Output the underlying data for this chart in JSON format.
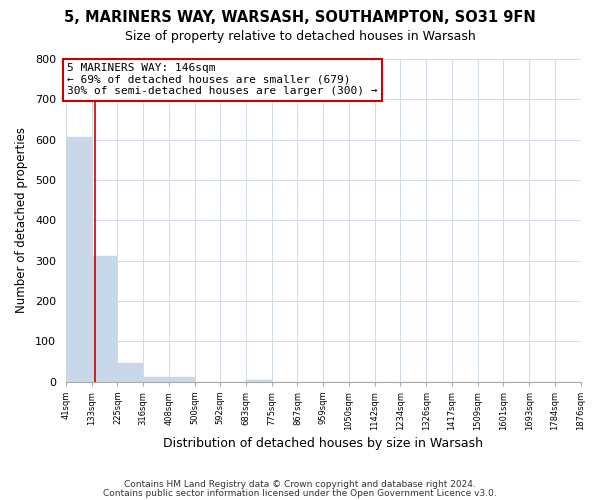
{
  "title_line1": "5, MARINERS WAY, WARSASH, SOUTHAMPTON, SO31 9FN",
  "title_line2": "Size of property relative to detached houses in Warsash",
  "xlabel": "Distribution of detached houses by size in Warsash",
  "ylabel": "Number of detached properties",
  "bar_edges": [
    41,
    133,
    225,
    316,
    408,
    500,
    592,
    683,
    775,
    867,
    959,
    1050,
    1142,
    1234,
    1326,
    1417,
    1509,
    1601,
    1693,
    1784,
    1876
  ],
  "bar_heights": [
    607,
    312,
    47,
    11,
    13,
    0,
    0,
    5,
    0,
    0,
    0,
    0,
    0,
    0,
    0,
    0,
    0,
    0,
    0,
    0
  ],
  "bar_color": "#c8d8e8",
  "bar_edge_color": "#c8d8e8",
  "property_line_x": 146,
  "property_line_color": "#cc0000",
  "annotation_text": "5 MARINERS WAY: 146sqm\n← 69% of detached houses are smaller (679)\n30% of semi-detached houses are larger (300) →",
  "annotation_box_color": "white",
  "annotation_box_edge_color": "#cc0000",
  "ylim": [
    0,
    800
  ],
  "yticks": [
    0,
    100,
    200,
    300,
    400,
    500,
    600,
    700,
    800
  ],
  "tick_labels": [
    "41sqm",
    "133sqm",
    "225sqm",
    "316sqm",
    "408sqm",
    "500sqm",
    "592sqm",
    "683sqm",
    "775sqm",
    "867sqm",
    "959sqm",
    "1050sqm",
    "1142sqm",
    "1234sqm",
    "1326sqm",
    "1417sqm",
    "1509sqm",
    "1601sqm",
    "1693sqm",
    "1784sqm",
    "1876sqm"
  ],
  "footer_line1": "Contains HM Land Registry data © Crown copyright and database right 2024.",
  "footer_line2": "Contains public sector information licensed under the Open Government Licence v3.0.",
  "grid_color": "#d0dce8",
  "background_color": "#ffffff",
  "plot_bg_color": "#ffffff"
}
